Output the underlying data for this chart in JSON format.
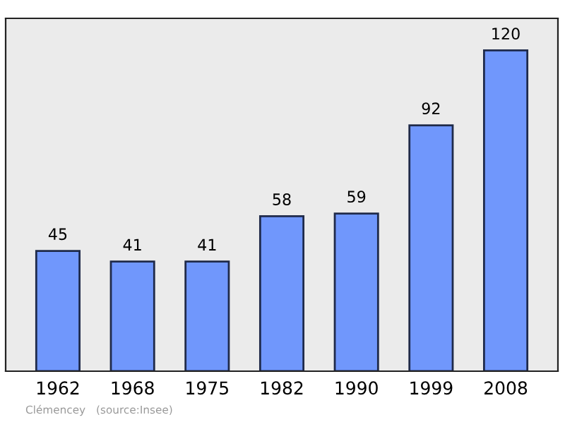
{
  "chart_data": {
    "type": "bar",
    "categories": [
      "1962",
      "1968",
      "1975",
      "1982",
      "1990",
      "1999",
      "2008"
    ],
    "values": [
      45,
      41,
      41,
      58,
      59,
      92,
      120
    ],
    "color": "#7097fc",
    "ylim": [
      0,
      132
    ],
    "data_labels": true,
    "grid": false,
    "tick_labels": "x",
    "annotations": [
      "Clémencey",
      "(source:Insee)"
    ]
  }
}
